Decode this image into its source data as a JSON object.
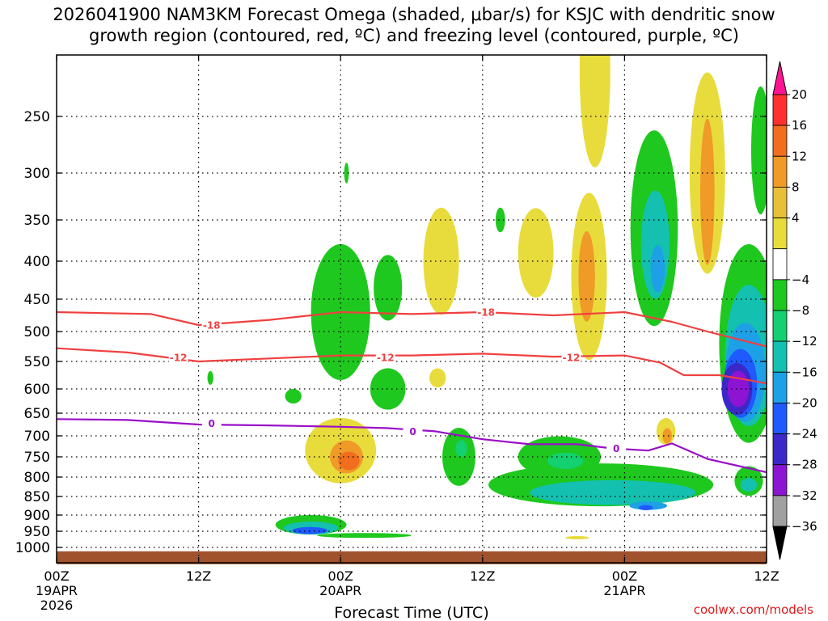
{
  "header": {
    "title_line1": "2026041900 NAM3KM Forecast Omega (shaded, μbar/s) for KSJC with dendritic snow",
    "title_line2": "growth region (contoured, red, ºC) and freezing level (contoured, purple, ºC)"
  },
  "footer": {
    "watermark": "coolwx.com/models"
  },
  "colors": {
    "isotherm": "#f04040",
    "freezing": "#9a0fc8",
    "ground": "#a0522d"
  },
  "chart_data": {
    "type": "heatmap",
    "title": "2026041900 NAM3KM Forecast Omega (shaded, μbar/s) for KSJC with dendritic snow growth region (contoured, red, ºC) and freezing level (contoured, purple, ºC)",
    "xlabel": "Forecast Time (UTC)",
    "ylabel": "",
    "x_range_hours": [
      0,
      60
    ],
    "x_ticks": [
      {
        "h": 0,
        "label": "00Z",
        "sub1": "19APR",
        "sub2": "2026"
      },
      {
        "h": 12,
        "label": "12Z",
        "sub1": "",
        "sub2": ""
      },
      {
        "h": 24,
        "label": "00Z",
        "sub1": "20APR",
        "sub2": ""
      },
      {
        "h": 36,
        "label": "12Z",
        "sub1": "",
        "sub2": ""
      },
      {
        "h": 48,
        "label": "00Z",
        "sub1": "21APR",
        "sub2": ""
      },
      {
        "h": 60,
        "label": "12Z",
        "sub1": "",
        "sub2": ""
      }
    ],
    "y_ticks": [
      250,
      300,
      350,
      400,
      450,
      500,
      550,
      600,
      650,
      700,
      750,
      800,
      850,
      900,
      950,
      1000
    ],
    "y_axis": "pressure (hPa), inverted",
    "grid": true,
    "colorbar": {
      "labels": [
        "20",
        "16",
        "12",
        "8",
        "4",
        "−4",
        "−8",
        "−12",
        "−16",
        "−20",
        "−24",
        "−28",
        "−32",
        "−36"
      ],
      "colors": [
        "#ff1493",
        "#ff3030",
        "#f06e1e",
        "#f09a28",
        "#e8c038",
        "#e8dc3c",
        "#ffffff",
        "#1ec81e",
        "#14d070",
        "#14c0b0",
        "#1ea0e6",
        "#1e5aff",
        "#3c28c8",
        "#8c14d2",
        "#a0a0a0",
        "#000000"
      ]
    },
    "contours": {
      "dgz_upper": {
        "label": "-18",
        "points": [
          [
            0,
            470
          ],
          [
            8,
            473
          ],
          [
            12,
            490
          ],
          [
            18,
            482
          ],
          [
            24,
            470
          ],
          [
            30,
            473
          ],
          [
            36,
            470
          ],
          [
            42,
            475
          ],
          [
            48,
            470
          ],
          [
            52,
            485
          ],
          [
            55,
            500
          ],
          [
            58,
            515
          ],
          [
            60,
            525
          ]
        ]
      },
      "dgz_lower": {
        "label": "-12",
        "points": [
          [
            0,
            528
          ],
          [
            6,
            535
          ],
          [
            12,
            550
          ],
          [
            18,
            545
          ],
          [
            24,
            540
          ],
          [
            30,
            540
          ],
          [
            36,
            537
          ],
          [
            42,
            542
          ],
          [
            48,
            540
          ],
          [
            51,
            552
          ],
          [
            53,
            575
          ],
          [
            56,
            575
          ],
          [
            58,
            582
          ],
          [
            60,
            590
          ]
        ]
      },
      "freezing_level": {
        "label": "0",
        "points": [
          [
            0,
            663
          ],
          [
            6,
            665
          ],
          [
            12,
            675
          ],
          [
            18,
            677
          ],
          [
            24,
            680
          ],
          [
            28,
            683
          ],
          [
            32,
            690
          ],
          [
            36,
            708
          ],
          [
            40,
            720
          ],
          [
            44,
            720
          ],
          [
            47,
            730
          ],
          [
            50,
            735
          ],
          [
            52,
            718
          ],
          [
            55,
            755
          ],
          [
            58,
            775
          ],
          [
            60,
            788
          ]
        ]
      }
    },
    "contour_labels": [
      {
        "text": "-18",
        "h": 13.1,
        "p": 490
      },
      {
        "text": "-12",
        "h": 10.3,
        "p": 543
      },
      {
        "text": "-12",
        "h": 27.8,
        "p": 543
      },
      {
        "text": "-12",
        "h": 43.5,
        "p": 543
      },
      {
        "text": "-18",
        "h": 36.3,
        "p": 470
      },
      {
        "text": "0",
        "h": 13.1,
        "p": 672
      },
      {
        "text": "0",
        "h": 30.1,
        "p": 690
      },
      {
        "text": "0",
        "h": 47.3,
        "p": 730
      }
    ],
    "omega_features": [
      {
        "v": -6,
        "h": 24,
        "p": 470,
        "rh": 2.5,
        "rp": 200
      },
      {
        "v": -6,
        "h": 28,
        "p": 435,
        "rh": 1.2,
        "rp": 90
      },
      {
        "v": 5,
        "h": 32.5,
        "p": 400,
        "rh": 1.5,
        "rp": 135
      },
      {
        "v": -6,
        "h": 20,
        "p": 615,
        "rh": 0.7,
        "rp": 30
      },
      {
        "v": -6,
        "h": 13,
        "p": 580,
        "rh": 0.25,
        "rp": 25
      },
      {
        "v": -6,
        "h": 24.5,
        "p": 300,
        "rh": 0.2,
        "rp": 20
      },
      {
        "v": 5,
        "h": 24,
        "p": 735,
        "rh": 3.0,
        "rp": 155
      },
      {
        "v": 9,
        "h": 24.5,
        "p": 750,
        "rh": 1.4,
        "rp": 80
      },
      {
        "v": 13,
        "h": 24.7,
        "p": 760,
        "rh": 0.9,
        "rp": 45
      },
      {
        "v": 5,
        "h": 32.2,
        "p": 580,
        "rh": 0.7,
        "rp": 35
      },
      {
        "v": -6,
        "h": 21.5,
        "p": 930,
        "rh": 3.0,
        "rp": 60
      },
      {
        "v": -12,
        "h": 21.5,
        "p": 940,
        "rh": 2.3,
        "rp": 40
      },
      {
        "v": -20,
        "h": 21.4,
        "p": 948,
        "rh": 1.5,
        "rp": 22
      },
      {
        "v": -6,
        "h": 26,
        "p": 963,
        "rh": 4.0,
        "rp": 15
      },
      {
        "v": -6,
        "h": 28,
        "p": 600,
        "rh": 1.5,
        "rp": 80
      },
      {
        "v": -6,
        "h": 34,
        "p": 750,
        "rh": 1.4,
        "rp": 140
      },
      {
        "v": -10,
        "h": 34.2,
        "p": 730,
        "rh": 0.5,
        "rp": 40
      },
      {
        "v": -6,
        "h": 37.5,
        "p": 350,
        "rh": 0.4,
        "rp": 28
      },
      {
        "v": 5,
        "h": 40.5,
        "p": 390,
        "rh": 1.5,
        "rp": 110
      },
      {
        "v": 5,
        "h": 45,
        "p": 420,
        "rh": 1.5,
        "rp": 220
      },
      {
        "v": 9,
        "h": 44.8,
        "p": 420,
        "rh": 0.7,
        "rp": 120
      },
      {
        "v": 5,
        "h": 45.5,
        "p": 210,
        "rh": 1.3,
        "rp": 170
      },
      {
        "v": -6,
        "h": 50.5,
        "p": 360,
        "rh": 2.0,
        "rp": 220
      },
      {
        "v": -12,
        "h": 50.6,
        "p": 380,
        "rh": 1.2,
        "rp": 130
      },
      {
        "v": -16,
        "h": 50.8,
        "p": 410,
        "rh": 0.6,
        "rp": 60
      },
      {
        "v": 5,
        "h": 55,
        "p": 300,
        "rh": 1.5,
        "rp": 200
      },
      {
        "v": 9,
        "h": 55,
        "p": 320,
        "rh": 0.6,
        "rp": 150
      },
      {
        "v": 5,
        "h": 54.5,
        "p": 120,
        "rh": 1.5,
        "rp": 100
      },
      {
        "v": 5,
        "h": 51.5,
        "p": 690,
        "rh": 0.8,
        "rp": 60
      },
      {
        "v": 9,
        "h": 51.6,
        "p": 700,
        "rh": 0.4,
        "rp": 35
      },
      {
        "v": -6,
        "h": 46,
        "p": 820,
        "rh": 9.5,
        "rp": 110
      },
      {
        "v": -12,
        "h": 47,
        "p": 840,
        "rh": 7.0,
        "rp": 65
      },
      {
        "v": -16,
        "h": 50,
        "p": 875,
        "rh": 1.6,
        "rp": 22
      },
      {
        "v": -20,
        "h": 49.8,
        "p": 880,
        "rh": 0.6,
        "rp": 14
      },
      {
        "v": -6,
        "h": 42.5,
        "p": 750,
        "rh": 3.5,
        "rp": 100
      },
      {
        "v": -8,
        "h": 43,
        "p": 760,
        "rh": 1.5,
        "rp": 40
      },
      {
        "v": -6,
        "h": 58.5,
        "p": 520,
        "rh": 2.5,
        "rp": 320
      },
      {
        "v": -12,
        "h": 58.5,
        "p": 540,
        "rh": 2.0,
        "rp": 240
      },
      {
        "v": -16,
        "h": 58.2,
        "p": 570,
        "rh": 1.7,
        "rp": 180
      },
      {
        "v": -20,
        "h": 57.8,
        "p": 590,
        "rh": 1.4,
        "rp": 130
      },
      {
        "v": -24,
        "h": 57.5,
        "p": 600,
        "rh": 1.3,
        "rp": 100
      },
      {
        "v": -28,
        "h": 57.6,
        "p": 600,
        "rh": 0.9,
        "rp": 70
      },
      {
        "v": -6,
        "h": 58.5,
        "p": 810,
        "rh": 1.2,
        "rp": 75
      },
      {
        "v": -12,
        "h": 58.5,
        "p": 820,
        "rh": 0.7,
        "rp": 35
      },
      {
        "v": -6,
        "h": 59.5,
        "p": 280,
        "rh": 0.8,
        "rp": 120
      },
      {
        "v": -6,
        "h": 37.5,
        "p": 350,
        "rh": 0.25,
        "rp": 25
      },
      {
        "v": 5,
        "h": 44,
        "p": 970,
        "rh": 1.0,
        "rp": 10
      }
    ],
    "ground_level_hpa": 1012
  }
}
